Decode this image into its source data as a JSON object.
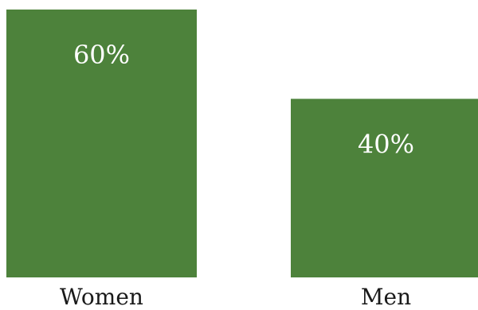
{
  "chart_data": {
    "type": "bar",
    "categories": [
      "Women",
      "Men"
    ],
    "values": [
      60,
      40
    ],
    "value_labels": [
      "60%",
      "40%"
    ],
    "title": "",
    "xlabel": "",
    "ylabel": "",
    "ylim": [
      0,
      60
    ],
    "grid": false,
    "legend": "none",
    "colors": {
      "bar": "#4d823b",
      "bar_label": "#ffffff",
      "category_label": "#1a1a1a",
      "background": "#ffffff"
    }
  }
}
